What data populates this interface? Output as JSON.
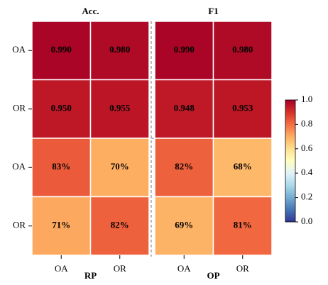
{
  "chart_data": [
    {
      "type": "heatmap",
      "title": "Acc.",
      "xlabel": "RP",
      "x_categories": [
        "OA",
        "OR"
      ],
      "y_categories": [
        "OA",
        "OR",
        "OA",
        "OR"
      ],
      "values": [
        [
          0.99,
          0.98
        ],
        [
          0.95,
          0.955
        ],
        [
          0.83,
          0.7
        ],
        [
          0.71,
          0.82
        ]
      ],
      "value_labels": [
        [
          "0.990",
          "0.980"
        ],
        [
          "0.950",
          "0.955"
        ],
        [
          "83%",
          "70%"
        ],
        [
          "71%",
          "82%"
        ]
      ],
      "zlim": [
        0,
        1
      ],
      "zticks": [
        {
          "value": 0,
          "label": "0.0"
        },
        0.2,
        0.4,
        0.6,
        0.8,
        {
          "value": 1,
          "label": "1.0"
        }
      ],
      "colormap": "RdYlBu_r"
    },
    {
      "type": "heatmap",
      "title": "F1",
      "xlabel": "OP",
      "x_categories": [
        "OA",
        "OR"
      ],
      "values": [
        [
          0.99,
          0.98
        ],
        [
          0.948,
          0.953
        ],
        [
          0.82,
          0.68
        ],
        [
          0.69,
          0.81
        ]
      ],
      "value_labels": [
        [
          "0.990",
          "0.980"
        ],
        [
          "0.948",
          "0.953"
        ],
        [
          "82%",
          "68%"
        ],
        [
          "69%",
          "81%"
        ]
      ]
    }
  ]
}
